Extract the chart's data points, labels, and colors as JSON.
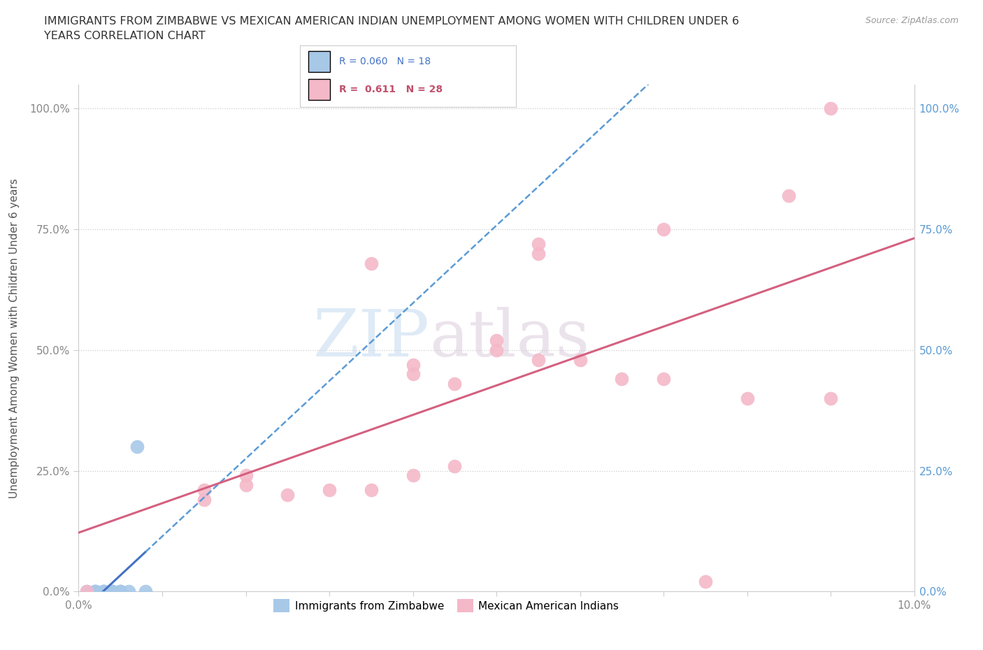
{
  "title": "IMMIGRANTS FROM ZIMBABWE VS MEXICAN AMERICAN INDIAN UNEMPLOYMENT AMONG WOMEN WITH CHILDREN UNDER 6\nYEARS CORRELATION CHART",
  "source": "Source: ZipAtlas.com",
  "ylabel": "Unemployment Among Women with Children Under 6 years",
  "xmin": 0.0,
  "xmax": 0.1,
  "ymin": 0.0,
  "ymax": 1.05,
  "ytick_labels": [
    "0.0%",
    "25.0%",
    "50.0%",
    "75.0%",
    "100.0%"
  ],
  "ytick_values": [
    0.0,
    0.25,
    0.5,
    0.75,
    1.0
  ],
  "xtick_values": [
    0.0,
    0.01,
    0.02,
    0.03,
    0.04,
    0.05,
    0.06,
    0.07,
    0.08,
    0.09,
    0.1
  ],
  "blue_color": "#a8c8e8",
  "pink_color": "#f4b8c8",
  "blue_line_color": "#4472c4",
  "pink_line_color": "#d46080",
  "blue_dashed_color": "#5b9bd5",
  "watermark_zip": "ZIP",
  "watermark_atlas": "atlas",
  "zimbabwe_x": [
    0.001,
    0.002,
    0.002,
    0.002,
    0.003,
    0.003,
    0.003,
    0.003,
    0.004,
    0.004,
    0.004,
    0.004,
    0.005,
    0.005,
    0.005,
    0.006,
    0.007,
    0.008
  ],
  "zimbabwe_y": [
    0.0,
    0.0,
    0.0,
    0.0,
    0.0,
    0.0,
    0.0,
    0.0,
    0.0,
    0.0,
    0.0,
    0.0,
    0.0,
    0.0,
    0.0,
    0.0,
    0.3,
    0.0
  ],
  "mexican_x": [
    0.001,
    0.015,
    0.015,
    0.02,
    0.02,
    0.025,
    0.03,
    0.035,
    0.04,
    0.04,
    0.045,
    0.05,
    0.05,
    0.055,
    0.06,
    0.065,
    0.07,
    0.075,
    0.08,
    0.085,
    0.09,
    0.055,
    0.045,
    0.055,
    0.035,
    0.04,
    0.07,
    0.09
  ],
  "mexican_y": [
    0.0,
    0.19,
    0.21,
    0.22,
    0.24,
    0.2,
    0.21,
    0.21,
    0.45,
    0.47,
    0.43,
    0.5,
    0.52,
    0.48,
    0.48,
    0.44,
    0.44,
    0.02,
    0.4,
    0.82,
    1.0,
    0.7,
    0.26,
    0.72,
    0.68,
    0.24,
    0.75,
    0.4
  ]
}
